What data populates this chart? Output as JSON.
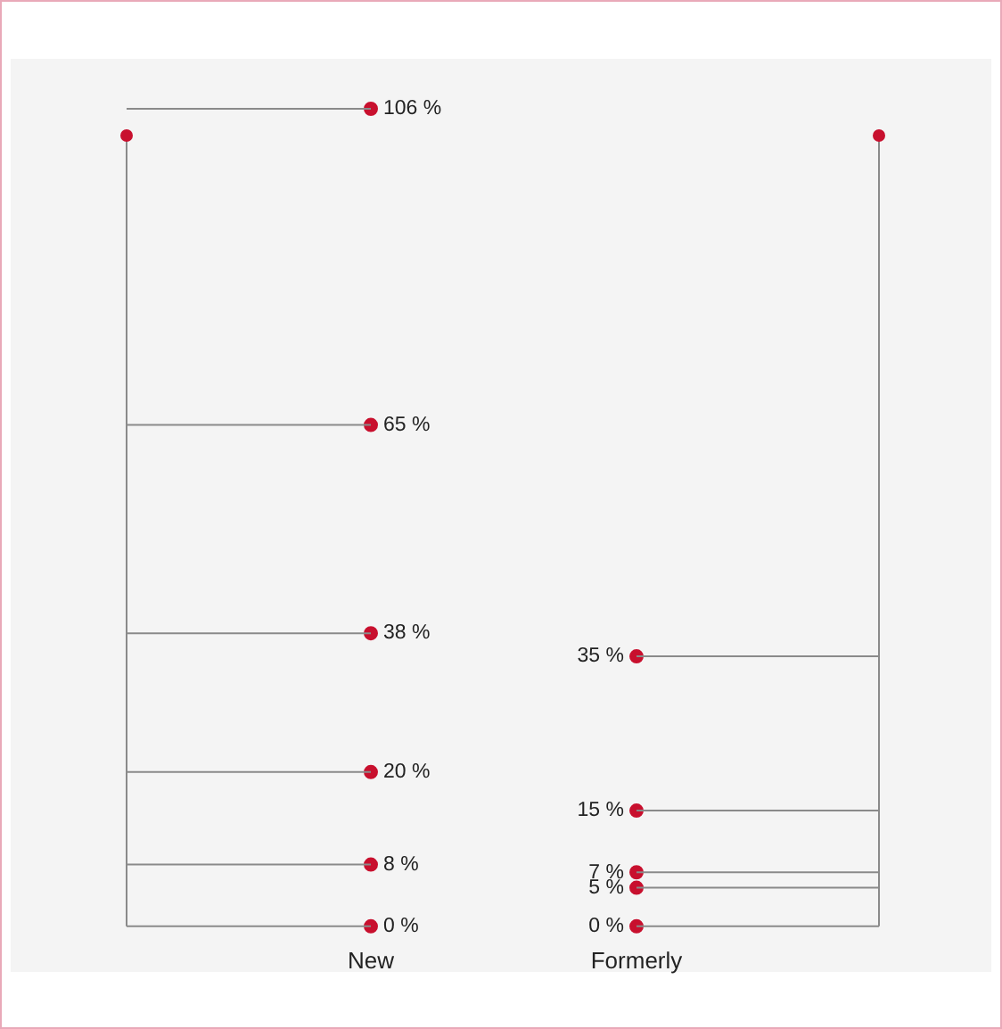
{
  "chart_data": {
    "type": "scatter",
    "marker": "circle",
    "categories": [
      "New",
      "Formerly"
    ],
    "series": [
      {
        "color": "#c8102e",
        "x": [
          "New",
          "New",
          "New",
          "New",
          "New",
          "New"
        ],
        "values": [
          0,
          8,
          20,
          38,
          65,
          106
        ],
        "value_labels": [
          "0 %",
          "8 %",
          "20 %",
          "38 %",
          "65 %",
          "106 %"
        ]
      },
      {
        "color": "#c8102e",
        "x": [
          "Formerly",
          "Formerly",
          "Formerly",
          "Formerly",
          "Formerly"
        ],
        "values": [
          0,
          5,
          7,
          15,
          35
        ],
        "value_labels": [
          "0 %",
          "5 %",
          "7 %",
          "15 %",
          "35 %"
        ]
      }
    ]
  }
}
